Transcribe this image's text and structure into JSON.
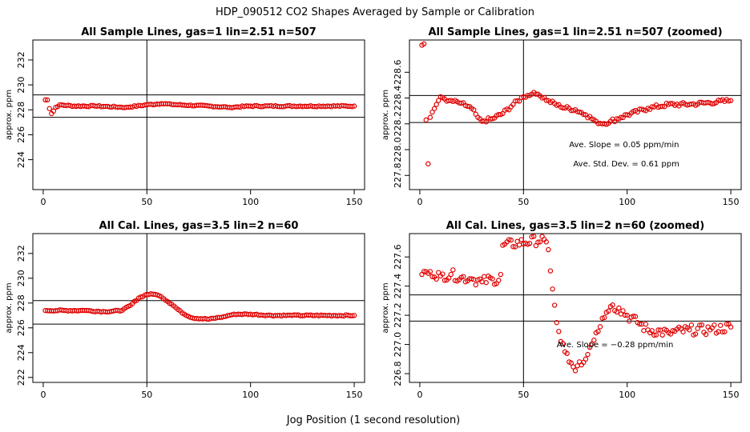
{
  "main_title": "HDP_090512  CO2 Shapes Averaged by Sample or Calibration",
  "x_axis_title": "Jog Position (1 second resolution)",
  "colors": {
    "points": "#e00000",
    "lines": "#000000"
  },
  "chart_data": [
    {
      "id": "p1",
      "type": "scatter",
      "title": "All Sample Lines, gas=1 lin=2.51 n=507",
      "xlabel": "",
      "ylabel": "approx. ppm",
      "xlim": [
        -5,
        155
      ],
      "ylim": [
        221.6,
        233.6
      ],
      "xticks": [
        0,
        50,
        100,
        150
      ],
      "yticks": [
        224,
        226,
        228,
        230,
        232
      ],
      "hlines": [
        229.2,
        227.4
      ],
      "vline": 50,
      "profile": {
        "n": 150,
        "keys": [
          [
            1,
            228.8
          ],
          [
            2,
            228.8
          ],
          [
            3,
            228.1
          ],
          [
            4,
            227.7
          ],
          [
            5,
            227.9
          ],
          [
            6,
            228.2
          ],
          [
            8,
            228.4
          ],
          [
            15,
            228.3
          ],
          [
            25,
            228.3
          ],
          [
            40,
            228.2
          ],
          [
            50,
            228.4
          ],
          [
            57,
            228.5
          ],
          [
            65,
            228.4
          ],
          [
            80,
            228.3
          ],
          [
            90,
            228.2
          ],
          [
            100,
            228.3
          ],
          [
            150,
            228.3
          ]
        ],
        "noise": 0.05
      },
      "annotations": []
    },
    {
      "id": "p2",
      "type": "scatter",
      "title": "All Sample Lines, gas=1 lin=2.51 n=507 (zoomed)",
      "xlabel": "",
      "ylabel": "approx. ppm",
      "xlim": [
        -5,
        155
      ],
      "ylim": [
        227.69,
        228.85
      ],
      "xticks": [
        0,
        50,
        100,
        150
      ],
      "yticks": [
        227.8,
        228.0,
        228.2,
        228.4,
        228.6
      ],
      "hlines": [
        228.42,
        228.21
      ],
      "vline": 50,
      "profile": {
        "n": 150,
        "keys": [
          [
            1,
            228.81
          ],
          [
            2,
            228.82
          ],
          [
            3,
            228.23
          ],
          [
            4,
            227.89
          ],
          [
            5,
            228.25
          ],
          [
            6,
            228.29
          ],
          [
            8,
            228.35
          ],
          [
            10,
            228.41
          ],
          [
            14,
            228.38
          ],
          [
            20,
            228.36
          ],
          [
            25,
            228.32
          ],
          [
            28,
            228.25
          ],
          [
            30,
            228.22
          ],
          [
            35,
            228.24
          ],
          [
            40,
            228.28
          ],
          [
            45,
            228.35
          ],
          [
            50,
            228.41
          ],
          [
            54,
            228.43
          ],
          [
            57,
            228.43
          ],
          [
            62,
            228.38
          ],
          [
            68,
            228.33
          ],
          [
            75,
            228.31
          ],
          [
            80,
            228.27
          ],
          [
            85,
            228.22
          ],
          [
            88,
            228.2
          ],
          [
            92,
            228.22
          ],
          [
            97,
            228.25
          ],
          [
            100,
            228.27
          ],
          [
            110,
            228.32
          ],
          [
            120,
            228.35
          ],
          [
            130,
            228.35
          ],
          [
            150,
            228.38
          ]
        ],
        "noise": 0.015
      },
      "annotations": [
        {
          "label": "Ave. Slope =",
          "value": "0.05",
          "unit": "ppm/min",
          "x": 72,
          "y": 228.02
        },
        {
          "label": "Ave. Std. Dev. =",
          "value": "0.61",
          "unit": "ppm",
          "x": 74,
          "y": 227.87
        }
      ]
    },
    {
      "id": "p3",
      "type": "scatter",
      "title": "All Cal. Lines, gas=3.5 lin=2 n=60",
      "xlabel": "",
      "ylabel": "approx. ppm",
      "xlim": [
        -5,
        155
      ],
      "ylim": [
        221.6,
        233.6
      ],
      "xticks": [
        0,
        50,
        100,
        150
      ],
      "yticks": [
        222,
        224,
        226,
        228,
        230,
        232
      ],
      "hlines": [
        228.2,
        226.3
      ],
      "vline": 50,
      "profile": {
        "n": 150,
        "keys": [
          [
            1,
            227.4
          ],
          [
            10,
            227.4
          ],
          [
            20,
            227.4
          ],
          [
            30,
            227.3
          ],
          [
            38,
            227.4
          ],
          [
            42,
            227.8
          ],
          [
            46,
            228.4
          ],
          [
            50,
            228.7
          ],
          [
            54,
            228.7
          ],
          [
            57,
            228.5
          ],
          [
            62,
            227.9
          ],
          [
            67,
            227.2
          ],
          [
            72,
            226.8
          ],
          [
            80,
            226.7
          ],
          [
            87,
            226.9
          ],
          [
            92,
            227.1
          ],
          [
            100,
            227.1
          ],
          [
            110,
            227.0
          ],
          [
            120,
            227.0
          ],
          [
            140,
            227.0
          ],
          [
            150,
            227.0
          ]
        ],
        "noise": 0.05
      },
      "annotations": []
    },
    {
      "id": "p4",
      "type": "scatter",
      "title": "All Cal. Lines, gas=3.5 lin=2 n=60 (zoomed)",
      "xlabel": "",
      "ylabel": "approx. ppm",
      "xlim": [
        -5,
        155
      ],
      "ylim": [
        226.74,
        227.76
      ],
      "xticks": [
        0,
        50,
        100,
        150
      ],
      "yticks": [
        226.8,
        227.0,
        227.2,
        227.4,
        227.6
      ],
      "hlines": [
        227.34,
        227.16
      ],
      "vline": 50,
      "profile": {
        "n": 150,
        "keys": [
          [
            1,
            227.48
          ],
          [
            5,
            227.5
          ],
          [
            10,
            227.47
          ],
          [
            15,
            227.48
          ],
          [
            20,
            227.46
          ],
          [
            25,
            227.45
          ],
          [
            30,
            227.43
          ],
          [
            35,
            227.45
          ],
          [
            38,
            227.44
          ],
          [
            39,
            227.48
          ],
          [
            40,
            227.68
          ],
          [
            60,
            227.72
          ],
          [
            62,
            227.65
          ],
          [
            64,
            227.38
          ],
          [
            66,
            227.15
          ],
          [
            68,
            227.02
          ],
          [
            70,
            226.95
          ],
          [
            72,
            226.88
          ],
          [
            75,
            226.82
          ],
          [
            78,
            226.86
          ],
          [
            80,
            226.9
          ],
          [
            82,
            226.98
          ],
          [
            85,
            227.08
          ],
          [
            88,
            227.18
          ],
          [
            92,
            227.26
          ],
          [
            96,
            227.25
          ],
          [
            100,
            227.2
          ],
          [
            105,
            227.15
          ],
          [
            110,
            227.1
          ],
          [
            120,
            227.08
          ],
          [
            130,
            227.1
          ],
          [
            140,
            227.1
          ],
          [
            150,
            227.12
          ]
        ],
        "noise": 0.035
      },
      "annotations": [
        {
          "label": "Ave. Slope =",
          "value": "−0.28",
          "unit": "ppm/min",
          "x": 66,
          "y": 226.98
        }
      ]
    }
  ]
}
